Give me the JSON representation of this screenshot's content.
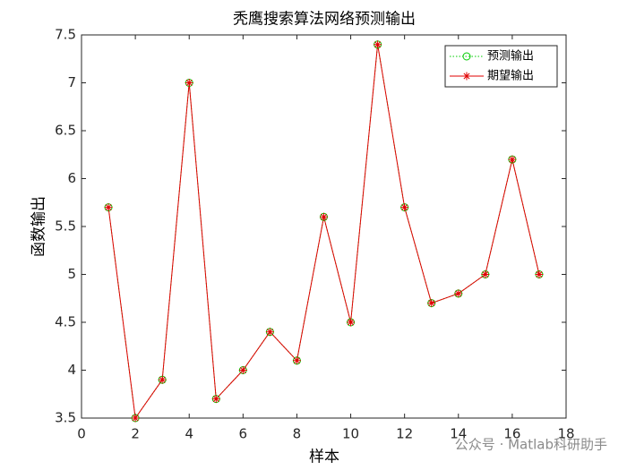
{
  "chart_data": {
    "type": "line",
    "title": "秃鹰搜索算法网络预测输出",
    "x_label": "样本",
    "y_label": "函数输出",
    "x": [
      1,
      2,
      3,
      4,
      5,
      6,
      7,
      8,
      9,
      10,
      11,
      12,
      13,
      14,
      15,
      16,
      17
    ],
    "series": [
      {
        "name": "预测输出",
        "color": "#00cc00",
        "marker": "circle",
        "line": "dotted",
        "values": [
          5.7,
          3.5,
          3.9,
          7.0,
          3.7,
          4.0,
          4.4,
          4.1,
          5.6,
          4.5,
          7.4,
          5.7,
          4.7,
          4.8,
          5.0,
          6.2,
          5.0
        ]
      },
      {
        "name": "期望输出",
        "color": "#e00000",
        "marker": "asterisk",
        "line": "solid",
        "values": [
          5.7,
          3.5,
          3.9,
          7.0,
          3.7,
          4.0,
          4.4,
          4.1,
          5.6,
          4.5,
          7.4,
          5.7,
          4.7,
          4.8,
          5.0,
          6.2,
          5.0
        ]
      }
    ],
    "xlim": [
      0,
      18
    ],
    "xticks": [
      0,
      2,
      4,
      6,
      8,
      10,
      12,
      14,
      16,
      18
    ],
    "ylim": [
      3.5,
      7.5
    ],
    "yticks": [
      3.5,
      4,
      4.5,
      5,
      5.5,
      6,
      6.5,
      7,
      7.5
    ],
    "legend": "northeast",
    "watermark": "公众号 · Matlab科研助手"
  }
}
